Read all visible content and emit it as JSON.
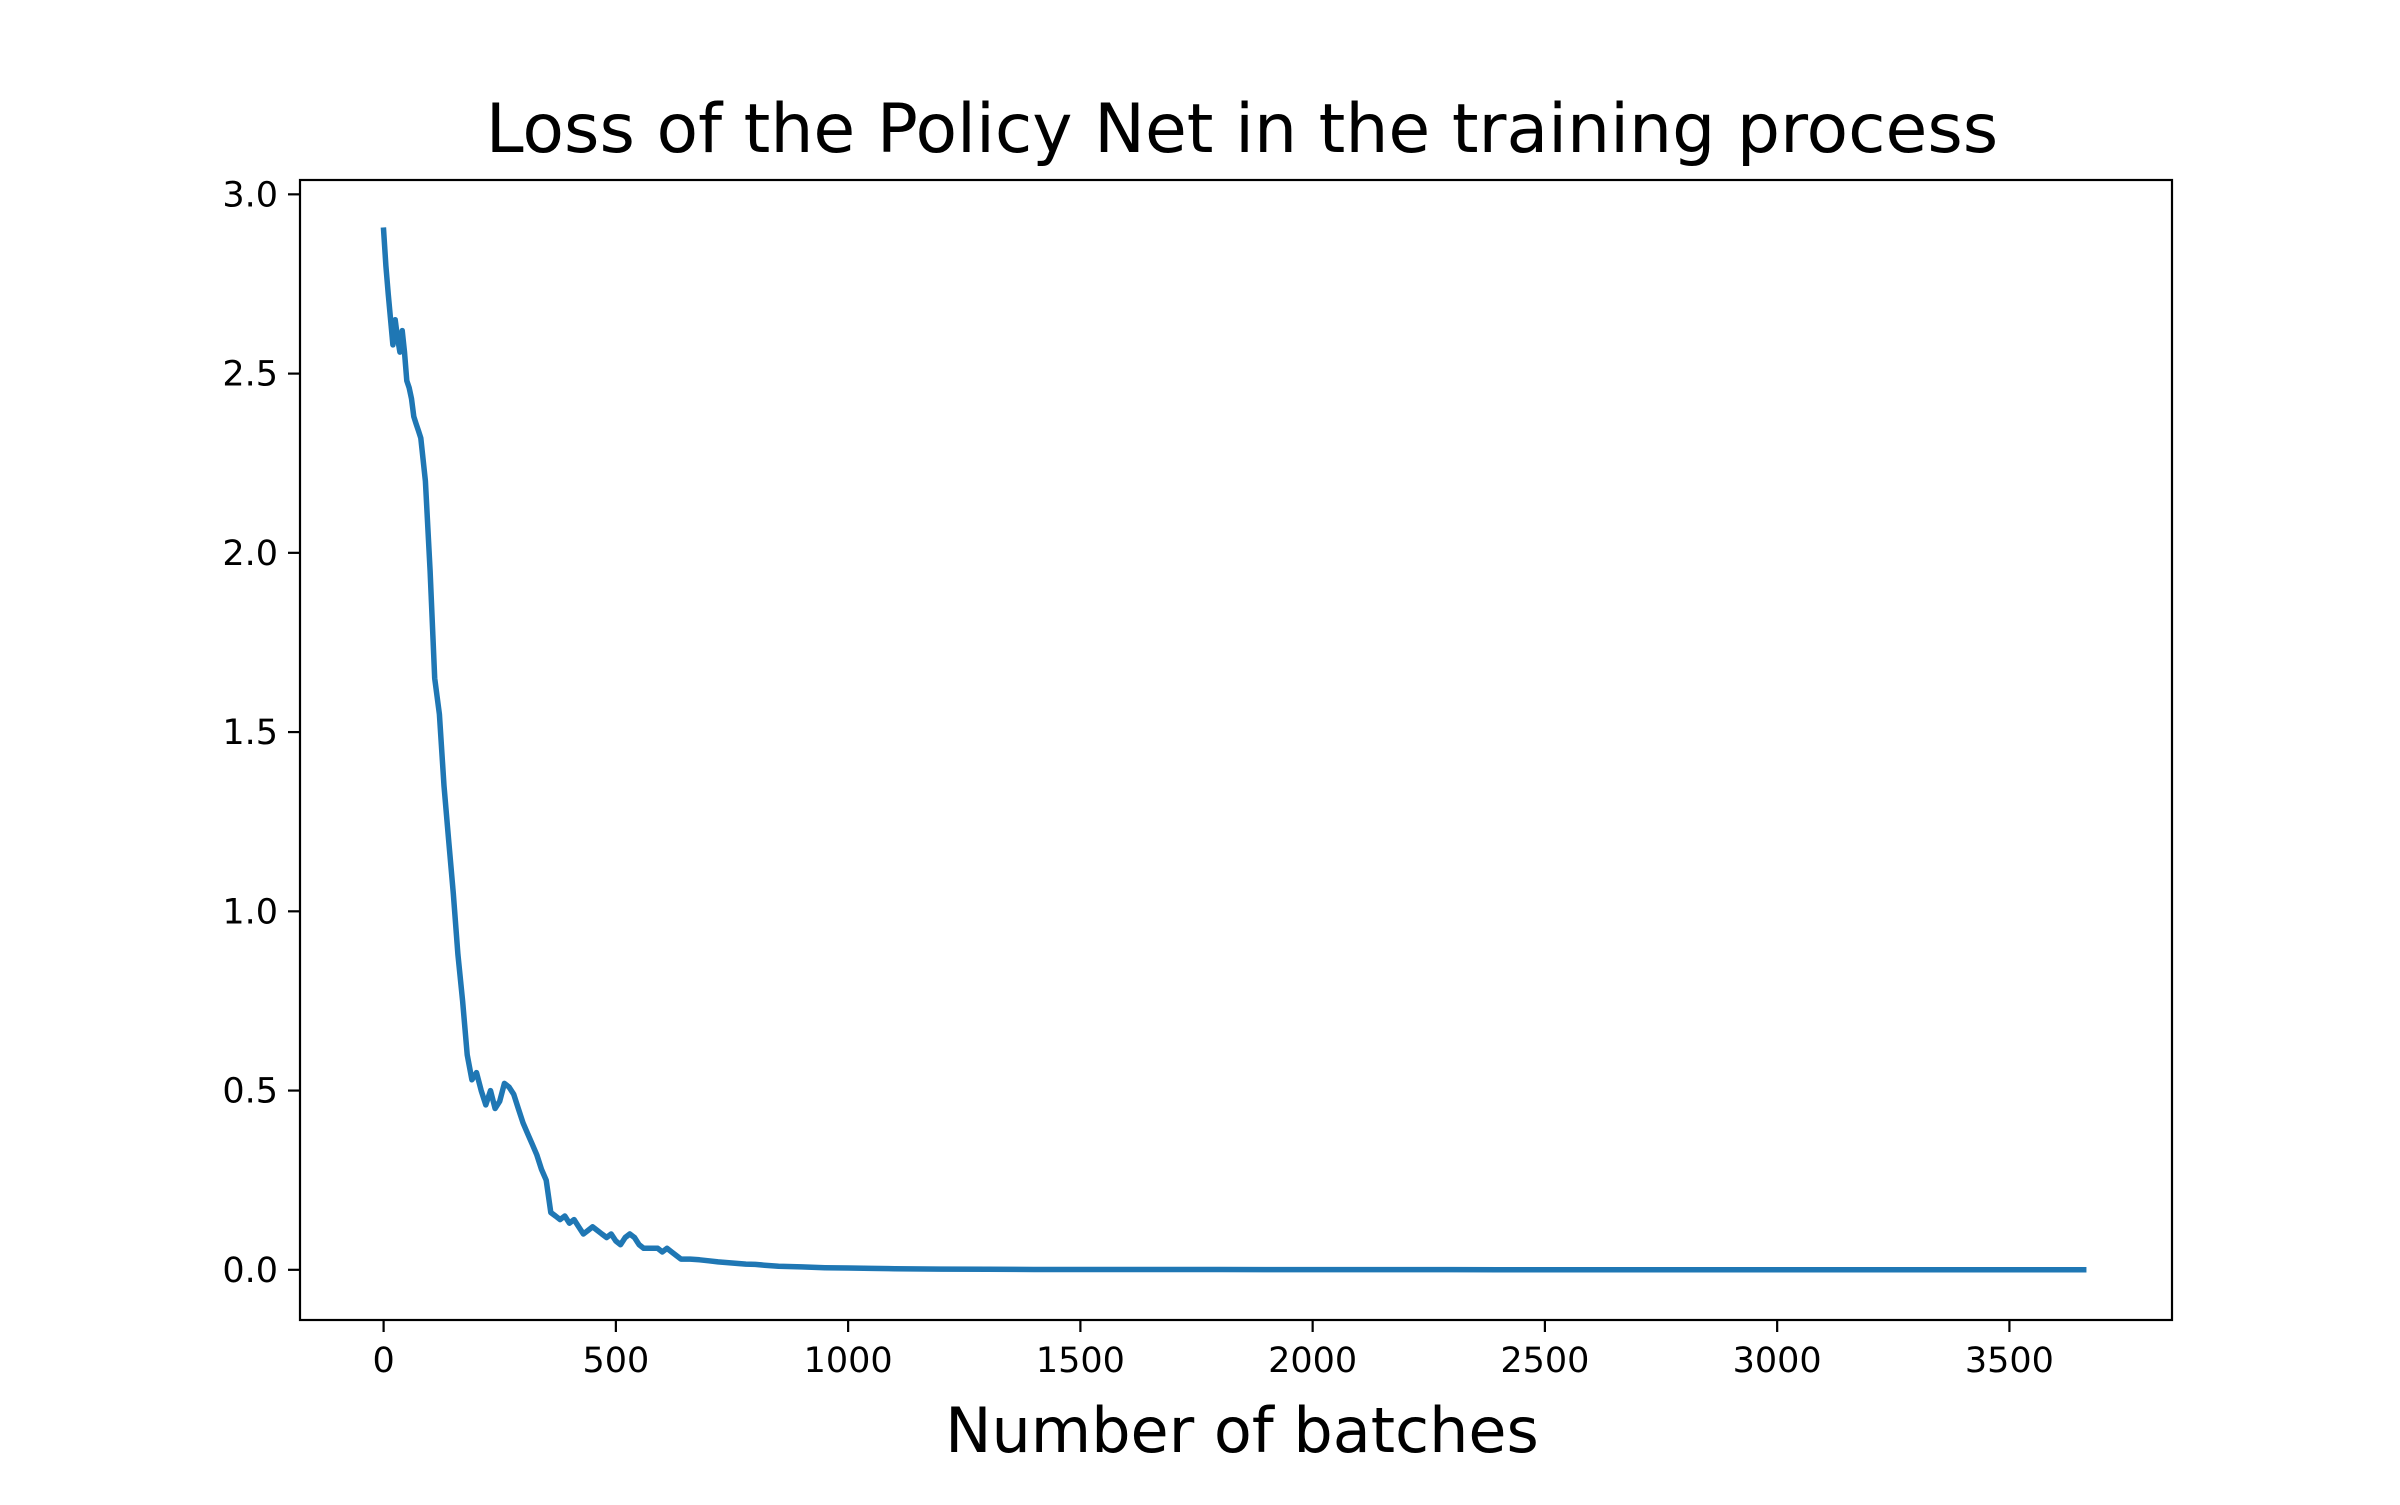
{
  "chart_data": {
    "type": "line",
    "title": "Loss of the Policy Net in the training process",
    "xlabel": "Number of batches",
    "ylabel": "",
    "xlim": [
      -180,
      3850
    ],
    "ylim": [
      -0.14,
      3.04
    ],
    "xticks": [
      0,
      500,
      1000,
      1500,
      2000,
      2500,
      3000,
      3500
    ],
    "xtick_labels": [
      "0",
      "500",
      "1000",
      "1500",
      "2000",
      "2500",
      "3000",
      "3500"
    ],
    "yticks": [
      0.0,
      0.5,
      1.0,
      1.5,
      2.0,
      2.5,
      3.0
    ],
    "ytick_labels": [
      "0.0",
      "0.5",
      "1.0",
      "1.5",
      "2.0",
      "2.5",
      "3.0"
    ],
    "grid": false,
    "legend": "none",
    "series": [
      {
        "color": "#1f77b4",
        "x": [
          0,
          5,
          10,
          15,
          20,
          25,
          30,
          35,
          40,
          45,
          50,
          55,
          60,
          65,
          70,
          75,
          80,
          90,
          100,
          110,
          120,
          130,
          140,
          150,
          160,
          170,
          180,
          190,
          200,
          210,
          220,
          230,
          240,
          250,
          260,
          270,
          280,
          290,
          300,
          310,
          320,
          330,
          340,
          350,
          360,
          370,
          380,
          390,
          400,
          410,
          420,
          430,
          440,
          450,
          460,
          470,
          480,
          490,
          500,
          510,
          520,
          530,
          540,
          550,
          560,
          570,
          580,
          590,
          600,
          610,
          620,
          640,
          660,
          680,
          700,
          720,
          740,
          760,
          780,
          800,
          820,
          850,
          900,
          950,
          1000,
          1050,
          1100,
          1200,
          1300,
          1400,
          1500,
          1600,
          1700,
          1800,
          1900,
          2000,
          2100,
          2200,
          2300,
          2400,
          2500,
          2600,
          2700,
          2800,
          2900,
          3000,
          3100,
          3200,
          3300,
          3400,
          3500,
          3600,
          3660
        ],
        "y": [
          2.9,
          2.8,
          2.72,
          2.65,
          2.58,
          2.65,
          2.6,
          2.56,
          2.62,
          2.56,
          2.48,
          2.46,
          2.43,
          2.38,
          2.36,
          2.34,
          2.32,
          2.2,
          1.95,
          1.65,
          1.55,
          1.35,
          1.2,
          1.05,
          0.88,
          0.75,
          0.6,
          0.53,
          0.55,
          0.5,
          0.46,
          0.5,
          0.45,
          0.47,
          0.52,
          0.51,
          0.49,
          0.45,
          0.41,
          0.38,
          0.35,
          0.32,
          0.28,
          0.25,
          0.16,
          0.15,
          0.14,
          0.15,
          0.13,
          0.14,
          0.12,
          0.1,
          0.11,
          0.12,
          0.11,
          0.1,
          0.09,
          0.1,
          0.08,
          0.07,
          0.09,
          0.1,
          0.09,
          0.07,
          0.06,
          0.06,
          0.06,
          0.06,
          0.05,
          0.06,
          0.05,
          0.03,
          0.03,
          0.028,
          0.025,
          0.022,
          0.02,
          0.018,
          0.016,
          0.015,
          0.013,
          0.01,
          0.008,
          0.006,
          0.005,
          0.004,
          0.003,
          0.002,
          0.0015,
          0.001,
          0.001,
          0.001,
          0.0008,
          0.0008,
          0.0006,
          0.0006,
          0.0005,
          0.0005,
          0.0005,
          0.0004,
          0.0004,
          0.0004,
          0.0004,
          0.0003,
          0.0003,
          0.0003,
          0.0003,
          0.0003,
          0.0002,
          0.0002,
          0.0002,
          0.0002,
          0.0002
        ]
      }
    ]
  }
}
